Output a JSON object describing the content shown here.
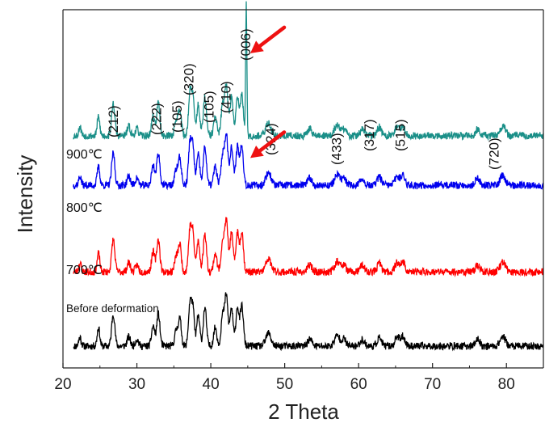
{
  "chart_data": {
    "type": "line",
    "title": "",
    "xlabel": "2 Theta",
    "ylabel": "Intensity",
    "xlim": [
      20,
      85
    ],
    "xticks": [
      "20",
      "30",
      "40",
      "50",
      "60",
      "70",
      "80"
    ],
    "grid": false,
    "legend": "none",
    "series": [
      {
        "name": "Before deformation",
        "color": "#000000",
        "baseline": 0.0,
        "seed": 11
      },
      {
        "name": "700℃",
        "color": "#ff0000",
        "baseline": 0.9,
        "seed": 23
      },
      {
        "name": "800℃",
        "color": "#0000ee",
        "baseline": 1.95,
        "seed": 37
      },
      {
        "name": "900℃",
        "color": "#1a8f88",
        "baseline": 2.55,
        "seed": 53
      }
    ],
    "peaks": [
      {
        "x": 22.3,
        "h": 0.12,
        "w": 0.25
      },
      {
        "x": 24.8,
        "h": 0.22,
        "w": 0.25
      },
      {
        "x": 26.8,
        "h": 0.38,
        "w": 0.3
      },
      {
        "x": 28.9,
        "h": 0.12,
        "w": 0.3
      },
      {
        "x": 30.0,
        "h": 0.1,
        "w": 0.3
      },
      {
        "x": 32.2,
        "h": 0.25,
        "w": 0.3
      },
      {
        "x": 32.9,
        "h": 0.42,
        "w": 0.3
      },
      {
        "x": 35.3,
        "h": 0.2,
        "w": 0.3
      },
      {
        "x": 35.8,
        "h": 0.32,
        "w": 0.3
      },
      {
        "x": 37.2,
        "h": 0.55,
        "w": 0.3
      },
      {
        "x": 37.6,
        "h": 0.45,
        "w": 0.25
      },
      {
        "x": 38.3,
        "h": 0.42,
        "w": 0.3
      },
      {
        "x": 39.2,
        "h": 0.48,
        "w": 0.3
      },
      {
        "x": 40.6,
        "h": 0.25,
        "w": 0.3
      },
      {
        "x": 41.6,
        "h": 0.4,
        "w": 0.3
      },
      {
        "x": 42.1,
        "h": 0.58,
        "w": 0.3
      },
      {
        "x": 42.8,
        "h": 0.45,
        "w": 0.3
      },
      {
        "x": 43.6,
        "h": 0.52,
        "w": 0.3
      },
      {
        "x": 44.2,
        "h": 0.5,
        "w": 0.3
      },
      {
        "x": 47.8,
        "h": 0.15,
        "w": 0.5
      },
      {
        "x": 53.4,
        "h": 0.08,
        "w": 0.4
      },
      {
        "x": 57.1,
        "h": 0.12,
        "w": 0.5
      },
      {
        "x": 58.0,
        "h": 0.1,
        "w": 0.4
      },
      {
        "x": 60.5,
        "h": 0.08,
        "w": 0.4
      },
      {
        "x": 62.8,
        "h": 0.1,
        "w": 0.4
      },
      {
        "x": 65.2,
        "h": 0.12,
        "w": 0.4
      },
      {
        "x": 66.0,
        "h": 0.14,
        "w": 0.4
      },
      {
        "x": 76.1,
        "h": 0.08,
        "w": 0.4
      },
      {
        "x": 79.5,
        "h": 0.12,
        "w": 0.5
      }
    ],
    "spike_900": {
      "x": 44.8,
      "h": 1.6,
      "w": 0.12
    },
    "peak_labels": [
      {
        "text": "(212)",
        "x": 26.8
      },
      {
        "text": "(222)",
        "x": 32.6
      },
      {
        "text": "(105)",
        "x": 35.4
      },
      {
        "text": "(320)",
        "x": 37.0
      },
      {
        "text": "(105)",
        "x": 39.7
      },
      {
        "text": "(410)",
        "x": 42.0
      },
      {
        "text": "(006)",
        "x": 44.7
      },
      {
        "text": "(324)",
        "x": 48.1
      },
      {
        "text": "(433)",
        "x": 57.0
      },
      {
        "text": "(317)",
        "x": 61.4
      },
      {
        "text": "(515)",
        "x": 65.6
      },
      {
        "text": "(720)",
        "x": 78.3
      }
    ],
    "arrows": [
      {
        "name": "arrow-900",
        "x": 44.8,
        "level": 3.55
      },
      {
        "name": "arrow-800",
        "x": 44.8,
        "level": 2.28
      }
    ],
    "arrow_color": "#ee1111"
  }
}
